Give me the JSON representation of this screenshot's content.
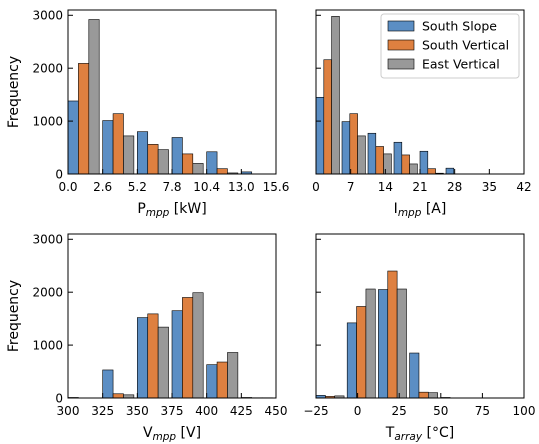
{
  "colors": {
    "South Slope": "#5b8ec4",
    "South Vertical": "#de8040",
    "East Vertical": "#999999"
  },
  "legend": {
    "placement": "top-right",
    "entries": [
      "South Slope",
      "South Vertical",
      "East Vertical"
    ]
  },
  "chart_data": [
    {
      "type": "bar",
      "xlabel": "P",
      "xlabel_sub": "mpp",
      "xlabel_unit": " [kW]",
      "ylabel": "Frequency",
      "xlim": [
        0,
        15.6
      ],
      "ylim": [
        0,
        3100
      ],
      "xticks": [
        0,
        2.6,
        5.2,
        7.8,
        10.4,
        13.0,
        15.6
      ],
      "xtick_labels": [
        "0.0",
        "2.6",
        "5.2",
        "7.8",
        "10.4",
        "13.0",
        "15.6"
      ],
      "yticks": [
        0,
        1000,
        2000,
        3000
      ],
      "ytick_labels": [
        "0",
        "1000",
        "2000",
        "3000"
      ],
      "bin_edges": [
        0,
        2.6,
        5.2,
        7.8,
        10.4,
        13.0,
        15.6
      ],
      "series": [
        {
          "name": "South Slope",
          "values": [
            1380,
            1010,
            800,
            690,
            420,
            40
          ]
        },
        {
          "name": "South Vertical",
          "values": [
            2090,
            1140,
            560,
            380,
            100,
            0
          ]
        },
        {
          "name": "East Vertical",
          "values": [
            2920,
            720,
            460,
            200,
            20,
            0
          ]
        }
      ]
    },
    {
      "type": "bar",
      "xlabel": "I",
      "xlabel_sub": "mpp",
      "xlabel_unit": " [A]",
      "ylabel": "",
      "xlim": [
        0,
        42
      ],
      "ylim": [
        0,
        3100
      ],
      "xticks": [
        0,
        7,
        14,
        21,
        28,
        35,
        42
      ],
      "xtick_labels": [
        "0",
        "7",
        "14",
        "21",
        "28",
        "35",
        "42"
      ],
      "yticks": [
        0,
        1000,
        2000,
        3000
      ],
      "ytick_labels": [],
      "bin_edges": [
        0,
        5.25,
        10.5,
        15.75,
        21,
        26.25,
        31.5,
        36.75
      ],
      "series": [
        {
          "name": "South Slope",
          "values": [
            1450,
            990,
            770,
            600,
            430,
            110,
            0
          ]
        },
        {
          "name": "South Vertical",
          "values": [
            2160,
            1140,
            520,
            360,
            100,
            0,
            0
          ]
        },
        {
          "name": "East Vertical",
          "values": [
            2980,
            720,
            380,
            190,
            15,
            0,
            0
          ]
        }
      ]
    },
    {
      "type": "bar",
      "xlabel": "V",
      "xlabel_sub": "mpp",
      "xlabel_unit": " [V]",
      "ylabel": "Frequency",
      "xlim": [
        300,
        450
      ],
      "ylim": [
        0,
        3100
      ],
      "xticks": [
        300,
        325,
        350,
        375,
        400,
        425,
        450
      ],
      "xtick_labels": [
        "300",
        "325",
        "350",
        "375",
        "400",
        "425",
        "450"
      ],
      "yticks": [
        0,
        1000,
        2000,
        3000
      ],
      "ytick_labels": [
        "0",
        "1000",
        "2000",
        "3000"
      ],
      "bin_edges": [
        300,
        325,
        350,
        375,
        400,
        425,
        450
      ],
      "series": [
        {
          "name": "South Slope",
          "values": [
            10,
            530,
            1520,
            1650,
            630,
            10
          ]
        },
        {
          "name": "South Vertical",
          "values": [
            0,
            80,
            1590,
            1900,
            680,
            5
          ]
        },
        {
          "name": "East Vertical",
          "values": [
            0,
            60,
            1340,
            1990,
            860,
            5
          ]
        }
      ]
    },
    {
      "type": "bar",
      "xlabel": "T",
      "xlabel_sub": "array",
      "xlabel_unit": " [°C]",
      "ylabel": "",
      "xlim": [
        -25,
        100
      ],
      "ylim": [
        0,
        3100
      ],
      "xticks": [
        -25,
        0,
        25,
        50,
        75,
        100
      ],
      "xtick_labels": [
        "−25",
        "0",
        "25",
        "50",
        "75",
        "100"
      ],
      "yticks": [
        0,
        1000,
        2000,
        3000
      ],
      "ytick_labels": [],
      "bin_edges": [
        -25,
        -6.25,
        12.5,
        31.25,
        50,
        68.75,
        87.5
      ],
      "series": [
        {
          "name": "South Slope",
          "values": [
            50,
            1420,
            2050,
            850,
            10,
            0
          ]
        },
        {
          "name": "South Vertical",
          "values": [
            30,
            1730,
            2400,
            110,
            0,
            0
          ]
        },
        {
          "name": "East Vertical",
          "values": [
            40,
            2060,
            2060,
            100,
            0,
            0
          ]
        }
      ]
    }
  ]
}
